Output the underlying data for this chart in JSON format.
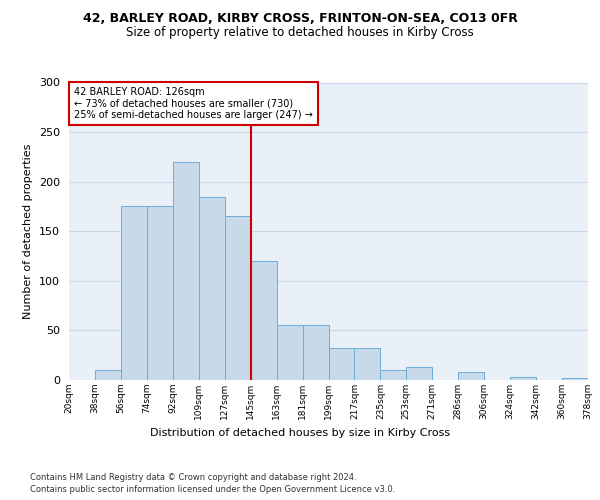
{
  "title": "42, BARLEY ROAD, KIRBY CROSS, FRINTON-ON-SEA, CO13 0FR",
  "subtitle": "Size of property relative to detached houses in Kirby Cross",
  "xlabel": "Distribution of detached houses by size in Kirby Cross",
  "ylabel": "Number of detached properties",
  "bar_values": [
    0,
    10,
    175,
    175,
    220,
    185,
    165,
    120,
    55,
    55,
    32,
    32,
    10,
    13,
    0,
    8,
    0,
    3,
    0,
    2
  ],
  "bin_labels": [
    "20sqm",
    "38sqm",
    "56sqm",
    "74sqm",
    "92sqm",
    "109sqm",
    "127sqm",
    "145sqm",
    "163sqm",
    "181sqm",
    "199sqm",
    "217sqm",
    "235sqm",
    "253sqm",
    "271sqm",
    "286sqm",
    "306sqm",
    "324sqm",
    "342sqm",
    "360sqm",
    "378sqm"
  ],
  "bar_color": "#c8daea",
  "bar_edge_color": "#6aaed6",
  "vline_color": "#cc0000",
  "vline_x": 6.5,
  "annotation_line1": "42 BARLEY ROAD: 126sqm",
  "annotation_line2": "← 73% of detached houses are smaller (730)",
  "annotation_line3": "25% of semi-detached houses are larger (247) →",
  "annotation_box_edge": "#cc0000",
  "grid_color": "#c8d8ea",
  "plot_bg_color": "#eaf0f8",
  "ylim": [
    0,
    300
  ],
  "yticks": [
    0,
    50,
    100,
    150,
    200,
    250,
    300
  ],
  "footnote_line1": "Contains HM Land Registry data © Crown copyright and database right 2024.",
  "footnote_line2": "Contains public sector information licensed under the Open Government Licence v3.0."
}
